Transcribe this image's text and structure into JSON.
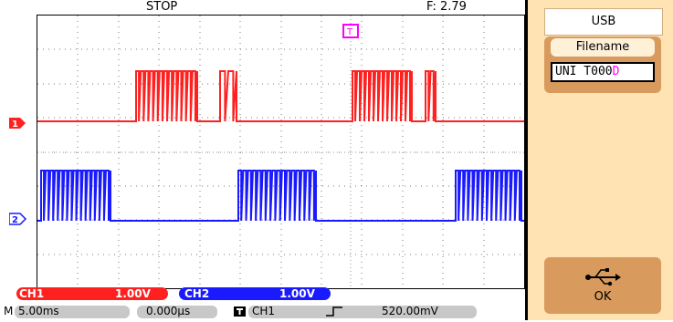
{
  "header": {
    "status": "STOP",
    "frequency": "F: 2.79"
  },
  "markers": {
    "ch1": "1",
    "ch2": "2",
    "trigger": "T"
  },
  "channels": {
    "ch1": {
      "name": "CH1",
      "scale": "1.00V",
      "color": "#ff2020"
    },
    "ch2": {
      "name": "CH2",
      "scale": "1.00V",
      "color": "#1a1aff"
    }
  },
  "timebase": {
    "mode": "M",
    "value": "5.00ms",
    "delay": "0.000µs",
    "trigger_source": "CH1",
    "trigger_level": "520.00mV"
  },
  "side_panel": {
    "title": "USB",
    "filename_label": "Filename",
    "filename_value": "UNI T000",
    "filename_cursor": "D",
    "ok_label": "OK"
  },
  "colors": {
    "accent_panel": "#ffe3b3",
    "panel_button": "#d99a5e",
    "trigger": "#ff00ff"
  }
}
